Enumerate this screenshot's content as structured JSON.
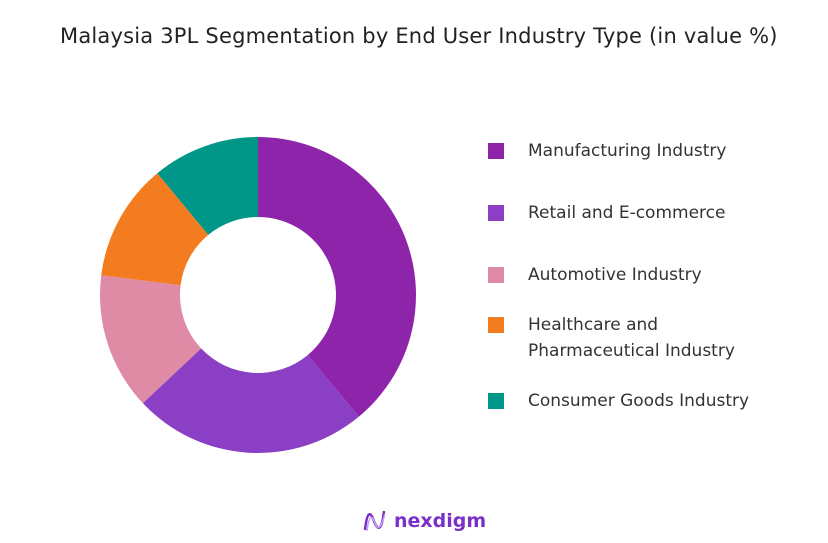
{
  "chart_data": {
    "type": "pie",
    "donut": true,
    "title": "Malaysia 3PL Segmentation by End User Industry Type (in value %)",
    "categories": [
      "Manufacturing Industry",
      "Retail and E-commerce",
      "Automotive Industry",
      "Healthcare and Pharmaceutical Industry",
      "Consumer Goods Industry"
    ],
    "values": [
      39,
      24,
      14,
      12,
      11
    ],
    "colors": [
      "#8e24aa",
      "#8a3fc4",
      "#e08ba6",
      "#f47c20",
      "#009688"
    ],
    "legend": {
      "placement": "right",
      "lines": [
        [
          "Manufacturing Industry"
        ],
        [
          "Retail and E-commerce"
        ],
        [
          "Automotive Industry"
        ],
        [
          "Healthcare and",
          "Pharmaceutical Industry"
        ],
        [
          "Consumer Goods Industry"
        ]
      ]
    }
  },
  "brand": {
    "name": "nexdigm",
    "color": "#7b2fc9"
  }
}
